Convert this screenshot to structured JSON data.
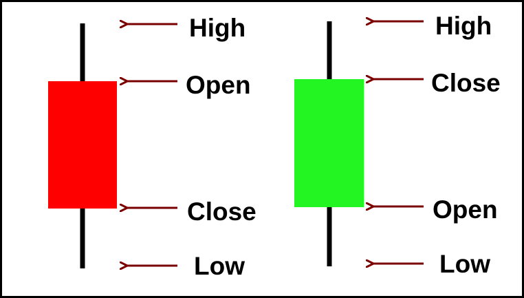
{
  "colors": {
    "bearish_body": "#ff0000",
    "bullish_body": "#22f522",
    "wick": "#000000",
    "arrow": "#7a0000",
    "text": "#000000",
    "background": "#ffffff"
  },
  "candles": [
    {
      "kind": "bearish",
      "labels": {
        "high": "High",
        "body_top": "Open",
        "body_bottom": "Close",
        "low": "Low"
      }
    },
    {
      "kind": "bullish",
      "labels": {
        "high": "High",
        "body_top": "Close",
        "body_bottom": "Open",
        "low": "Low"
      }
    }
  ],
  "icons": {
    "pointer": "arrow-left-icon"
  }
}
